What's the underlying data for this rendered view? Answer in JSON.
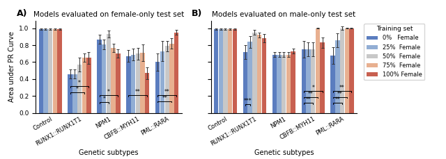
{
  "chart_data": [
    {
      "type": "bar",
      "title": "Models evaluated on female-only test set",
      "panel_label": "A)",
      "x_label": "Genetic subtypes",
      "y_label": "Area under PR Curve",
      "categories": [
        "Control",
        "RUNX1::RUNX1T1",
        "NPM1",
        "CBFB::MYH11",
        "PML::RARA"
      ],
      "series": [
        {
          "name": "0%   Female",
          "color": "#5b7dbf",
          "values": [
            0.99,
            0.46,
            0.87,
            0.67,
            0.6
          ],
          "errors": [
            0.005,
            0.05,
            0.05,
            0.07,
            0.1
          ]
        },
        {
          "name": "25%  Female",
          "color": "#92aed4",
          "values": [
            0.99,
            0.46,
            0.81,
            0.69,
            0.73
          ],
          "errors": [
            0.005,
            0.05,
            0.06,
            0.07,
            0.12
          ]
        },
        {
          "name": "50%  Female",
          "color": "#c8c8c8",
          "values": [
            0.99,
            0.57,
            0.93,
            0.7,
            0.79
          ],
          "errors": [
            0.005,
            0.08,
            0.04,
            0.07,
            0.06
          ]
        },
        {
          "name": "75%  Female",
          "color": "#e8b090",
          "values": [
            0.99,
            0.65,
            0.77,
            0.71,
            0.82
          ],
          "errors": [
            0.005,
            0.05,
            0.05,
            0.1,
            0.06
          ]
        },
        {
          "name": "100% Female",
          "color": "#c86050",
          "values": [
            0.99,
            0.65,
            0.7,
            0.47,
            0.95
          ],
          "errors": [
            0.005,
            0.07,
            0.05,
            0.07,
            0.03
          ]
        }
      ],
      "annotations": [
        {
          "text": "*",
          "category": "RUNX1::RUNX1T1",
          "from": "0%   Female",
          "to": "100% Female",
          "y": 0.3
        },
        {
          "text": "*",
          "category": "RUNX1::RUNX1T1",
          "from": "0%   Female",
          "to": "75%  Female",
          "y": 0.23
        },
        {
          "text": "*",
          "category": "NPM1",
          "from": "0%   Female",
          "to": "100% Female",
          "y": 0.195
        },
        {
          "text": "*",
          "category": "NPM1",
          "from": "0%   Female",
          "to": "50%  Female",
          "y": 0.115
        },
        {
          "text": "**",
          "category": "CBFB::MYH11",
          "from": "0%   Female",
          "to": "100% Female",
          "y": 0.195
        },
        {
          "text": "**",
          "category": "PML::RARA",
          "from": "0%   Female",
          "to": "100% Female",
          "y": 0.195
        },
        {
          "text": "**",
          "category": "PML::RARA",
          "from": "0%   Female",
          "to": "75%  Female",
          "y": 0.125
        }
      ],
      "ylim": [
        0.0,
        1.09
      ],
      "yticks": [
        0.0,
        0.2,
        0.4,
        0.6,
        0.8,
        1.0
      ]
    },
    {
      "type": "bar",
      "title": "Models evaluated on male-only test set",
      "panel_label": "B)",
      "x_label": "Genetic subtypes",
      "categories": [
        "Control",
        "RUNX1::RUNX1T1",
        "NPM1",
        "CBFB::MYH11",
        "PML::RARA"
      ],
      "series": [
        {
          "name": "0%   Female",
          "color": "#5b7dbf",
          "values": [
            0.99,
            0.72,
            0.69,
            0.75,
            0.68
          ],
          "errors": [
            0.005,
            0.08,
            0.03,
            0.1,
            0.1
          ]
        },
        {
          "name": "25%  Female",
          "color": "#92aed4",
          "values": [
            0.99,
            0.84,
            0.69,
            0.75,
            0.86
          ],
          "errors": [
            0.005,
            0.07,
            0.03,
            0.08,
            0.08
          ]
        },
        {
          "name": "50%  Female",
          "color": "#c8c8c8",
          "values": [
            0.99,
            0.95,
            0.69,
            0.75,
            1.0
          ],
          "errors": [
            0.005,
            0.03,
            0.03,
            0.08,
            0.02
          ]
        },
        {
          "name": "75%  Female",
          "color": "#e8b090",
          "values": [
            0.99,
            0.92,
            0.69,
            1.0,
            1.0
          ],
          "errors": [
            0.005,
            0.03,
            0.03,
            0.005,
            0.005
          ]
        },
        {
          "name": "100% Female",
          "color": "#c86050",
          "values": [
            0.99,
            0.88,
            0.73,
            0.83,
            1.0
          ],
          "errors": [
            0.005,
            0.05,
            0.03,
            0.06,
            0.005
          ]
        }
      ],
      "annotations": [
        {
          "text": "***",
          "category": "RUNX1::RUNX1T1",
          "from": "0%   Female",
          "to": "25%  Female",
          "y": 0.09
        },
        {
          "text": "*",
          "category": "CBFB::MYH11",
          "from": "0%   Female",
          "to": "100% Female",
          "y": 0.245
        },
        {
          "text": "**",
          "category": "CBFB::MYH11",
          "from": "0%   Female",
          "to": "75%  Female",
          "y": 0.175
        },
        {
          "text": "**",
          "category": "CBFB::MYH11",
          "from": "0%   Female",
          "to": "50%  Female",
          "y": 0.105
        },
        {
          "text": "**",
          "category": "PML::RARA",
          "from": "0%   Female",
          "to": "100% Female",
          "y": 0.245
        },
        {
          "text": "**",
          "category": "PML::RARA",
          "from": "0%   Female",
          "to": "75%  Female",
          "y": 0.175
        },
        {
          "text": "**",
          "category": "PML::RARA",
          "from": "0%   Female",
          "to": "50%  Female",
          "y": 0.105
        }
      ],
      "ylim": [
        0.0,
        1.09
      ],
      "yticks": [
        0.0,
        0.2,
        0.4,
        0.6,
        0.8,
        1.0
      ],
      "tick_labels": "x",
      "legend": "upper left",
      "legend_title": "Training set"
    }
  ]
}
